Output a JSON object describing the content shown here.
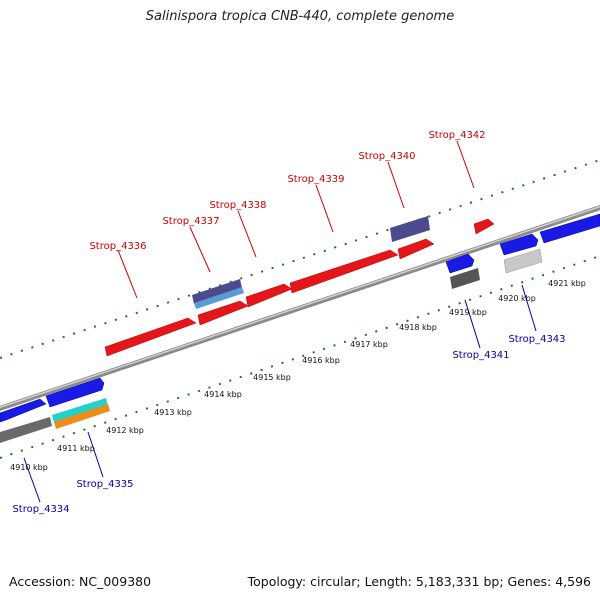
{
  "title": "Salinispora tropica CNB-440, complete genome",
  "accession": "Accession: NC_009380",
  "topology": "Topology: circular; Length: 5,183,331 bp; Genes: 4,596",
  "colors": {
    "forward_label": "#cc0000",
    "reverse_label": "#0000aa",
    "tick": "#1a7a1a",
    "backbone": "#9a9a9a"
  },
  "kbp_ticks": [
    "4910 kbp",
    "4911 kbp",
    "4912 kbp",
    "4913 kbp",
    "4914 kbp",
    "4915 kbp",
    "4916 kbp",
    "4917 kbp",
    "4918 kbp",
    "4919 kbp",
    "4920 kbp",
    "4921 kbp"
  ],
  "forward_genes": [
    {
      "label": "Strop_4336"
    },
    {
      "label": "Strop_4337"
    },
    {
      "label": "Strop_4338"
    },
    {
      "label": "Strop_4339"
    },
    {
      "label": "Strop_4340"
    },
    {
      "label": "Strop_4342"
    }
  ],
  "reverse_genes": [
    {
      "label": "Strop_4334"
    },
    {
      "label": "Strop_4335"
    },
    {
      "label": "Strop_4341"
    },
    {
      "label": "Strop_4343"
    }
  ]
}
